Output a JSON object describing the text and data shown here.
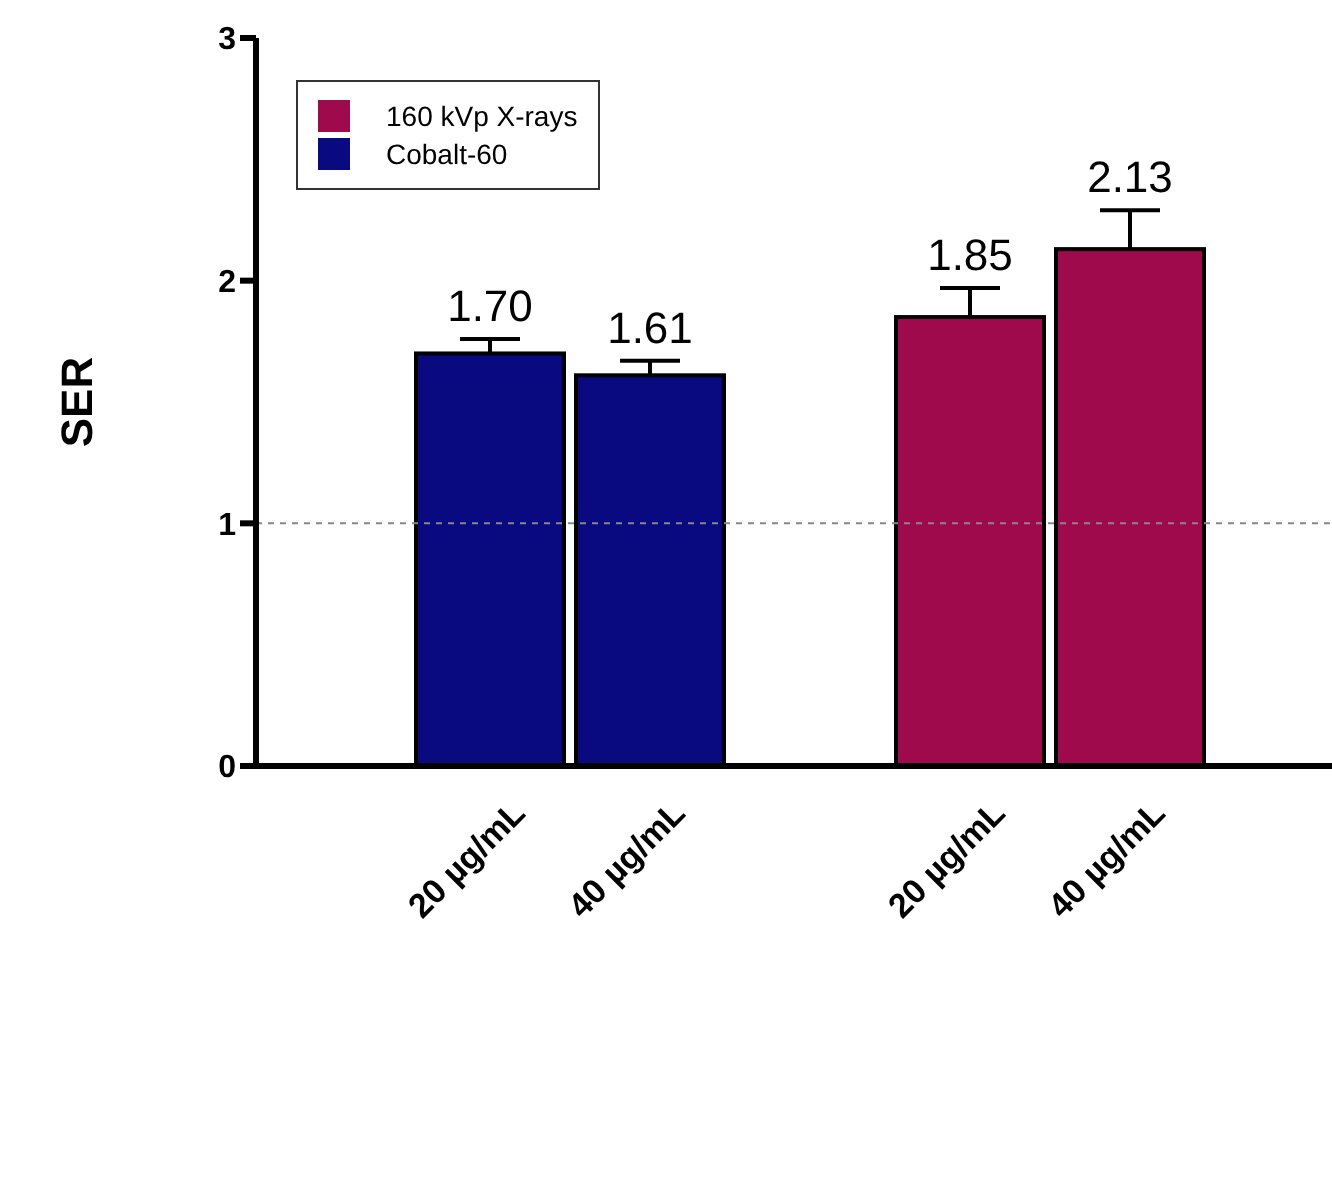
{
  "chart_data": {
    "type": "bar",
    "ylabel": "SER",
    "categories": [
      "20 µg/mL",
      "40 µg/mL",
      null,
      "20 µg/mL",
      "40 µg/mL"
    ],
    "series": [
      {
        "name": "160 kVp X-rays",
        "color": "#9e0a4c",
        "values": [
          null,
          null,
          null,
          1.85,
          2.13
        ],
        "errors": [
          null,
          null,
          null,
          [
            1.85,
            1.97
          ],
          [
            2.13,
            2.29
          ]
        ],
        "value_labels": [
          null,
          null,
          null,
          "1.85",
          "2.13"
        ]
      },
      {
        "name": "Cobalt-60",
        "color": "#0a0a80",
        "values": [
          1.7,
          1.61,
          null,
          null,
          null
        ],
        "errors": [
          [
            1.7,
            1.76
          ],
          [
            1.61,
            1.67
          ],
          null,
          null,
          null
        ],
        "value_labels": [
          "1.70",
          "1.61",
          null,
          null,
          null
        ]
      }
    ],
    "ylim": [
      0,
      3
    ],
    "yticks": [
      0,
      1,
      2,
      3
    ],
    "grid": false,
    "legend": "top left",
    "ref_lines": [
      {
        "axis": "y",
        "value": 1,
        "color": "#888888",
        "line_style": "dashed"
      }
    ]
  }
}
